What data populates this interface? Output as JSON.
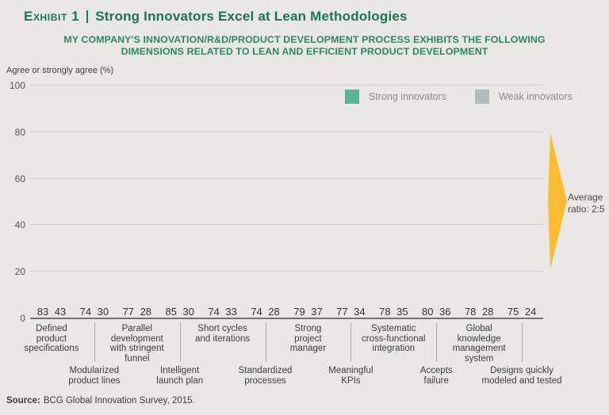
{
  "header": {
    "exhibit_label": "Exhibit 1",
    "title": "Strong Innovators Excel at Lean Methodologies",
    "subtitle": "MY COMPANY'S INNOVATION/R&D/PRODUCT DEVELOPMENT PROCESS EXHIBITS THE FOLLOWING\nDIMENSIONS RELATED TO LEAN AND EFFICIENT PRODUCT DEVELOPMENT"
  },
  "chart_data": {
    "type": "bar",
    "title": "Strong Innovators Excel at Lean Methodologies",
    "ylabel": "Agree or strongly agree (%)",
    "ylim": [
      0,
      100
    ],
    "yticks": [
      0,
      20,
      40,
      60,
      80,
      100
    ],
    "grid": true,
    "legend_position": "top-right",
    "categories": [
      "Defined\nproduct\nspecifications",
      "Modularized\nproduct lines",
      "Parallel\ndevelopment\nwith stringent\nfunnel",
      "Intelligent\nlaunch plan",
      "Short cycles\nand iterations",
      "Standardized\nprocesses",
      "Strong\nproject\nmanager",
      "Meaningful\nKPIs",
      "Systematic\ncross-functional\nintegration",
      "Accepts\nfailure",
      "Global\nknowledge\nmanagement\nsystem",
      "Designs quickly\nmodeled and tested"
    ],
    "series": [
      {
        "name": "Strong innovators",
        "color": "#58b593",
        "values": [
          83,
          74,
          77,
          85,
          74,
          74,
          79,
          77,
          78,
          80,
          78,
          75
        ]
      },
      {
        "name": "Weak innovators",
        "color": "#b2b8bc",
        "values": [
          43,
          30,
          28,
          30,
          33,
          28,
          37,
          34,
          35,
          36,
          28,
          24
        ]
      }
    ],
    "annotation": {
      "text": "Average ratio: 2:5",
      "shape": "yellow-right-arrow",
      "color": "#fbbd2f"
    }
  },
  "source": {
    "label": "Source:",
    "text": "BCG Global Innovation Survey, 2015."
  },
  "colors": {
    "background": "#e9e8e5",
    "title_green": "#1a7551",
    "subtitle_green": "#2b8a61",
    "strong_bar": "#58b593",
    "weak_bar": "#b2b8bc",
    "annotation_yellow": "#fbbd2f",
    "gridline": "#cdccc8",
    "baseline": "#76767a"
  }
}
